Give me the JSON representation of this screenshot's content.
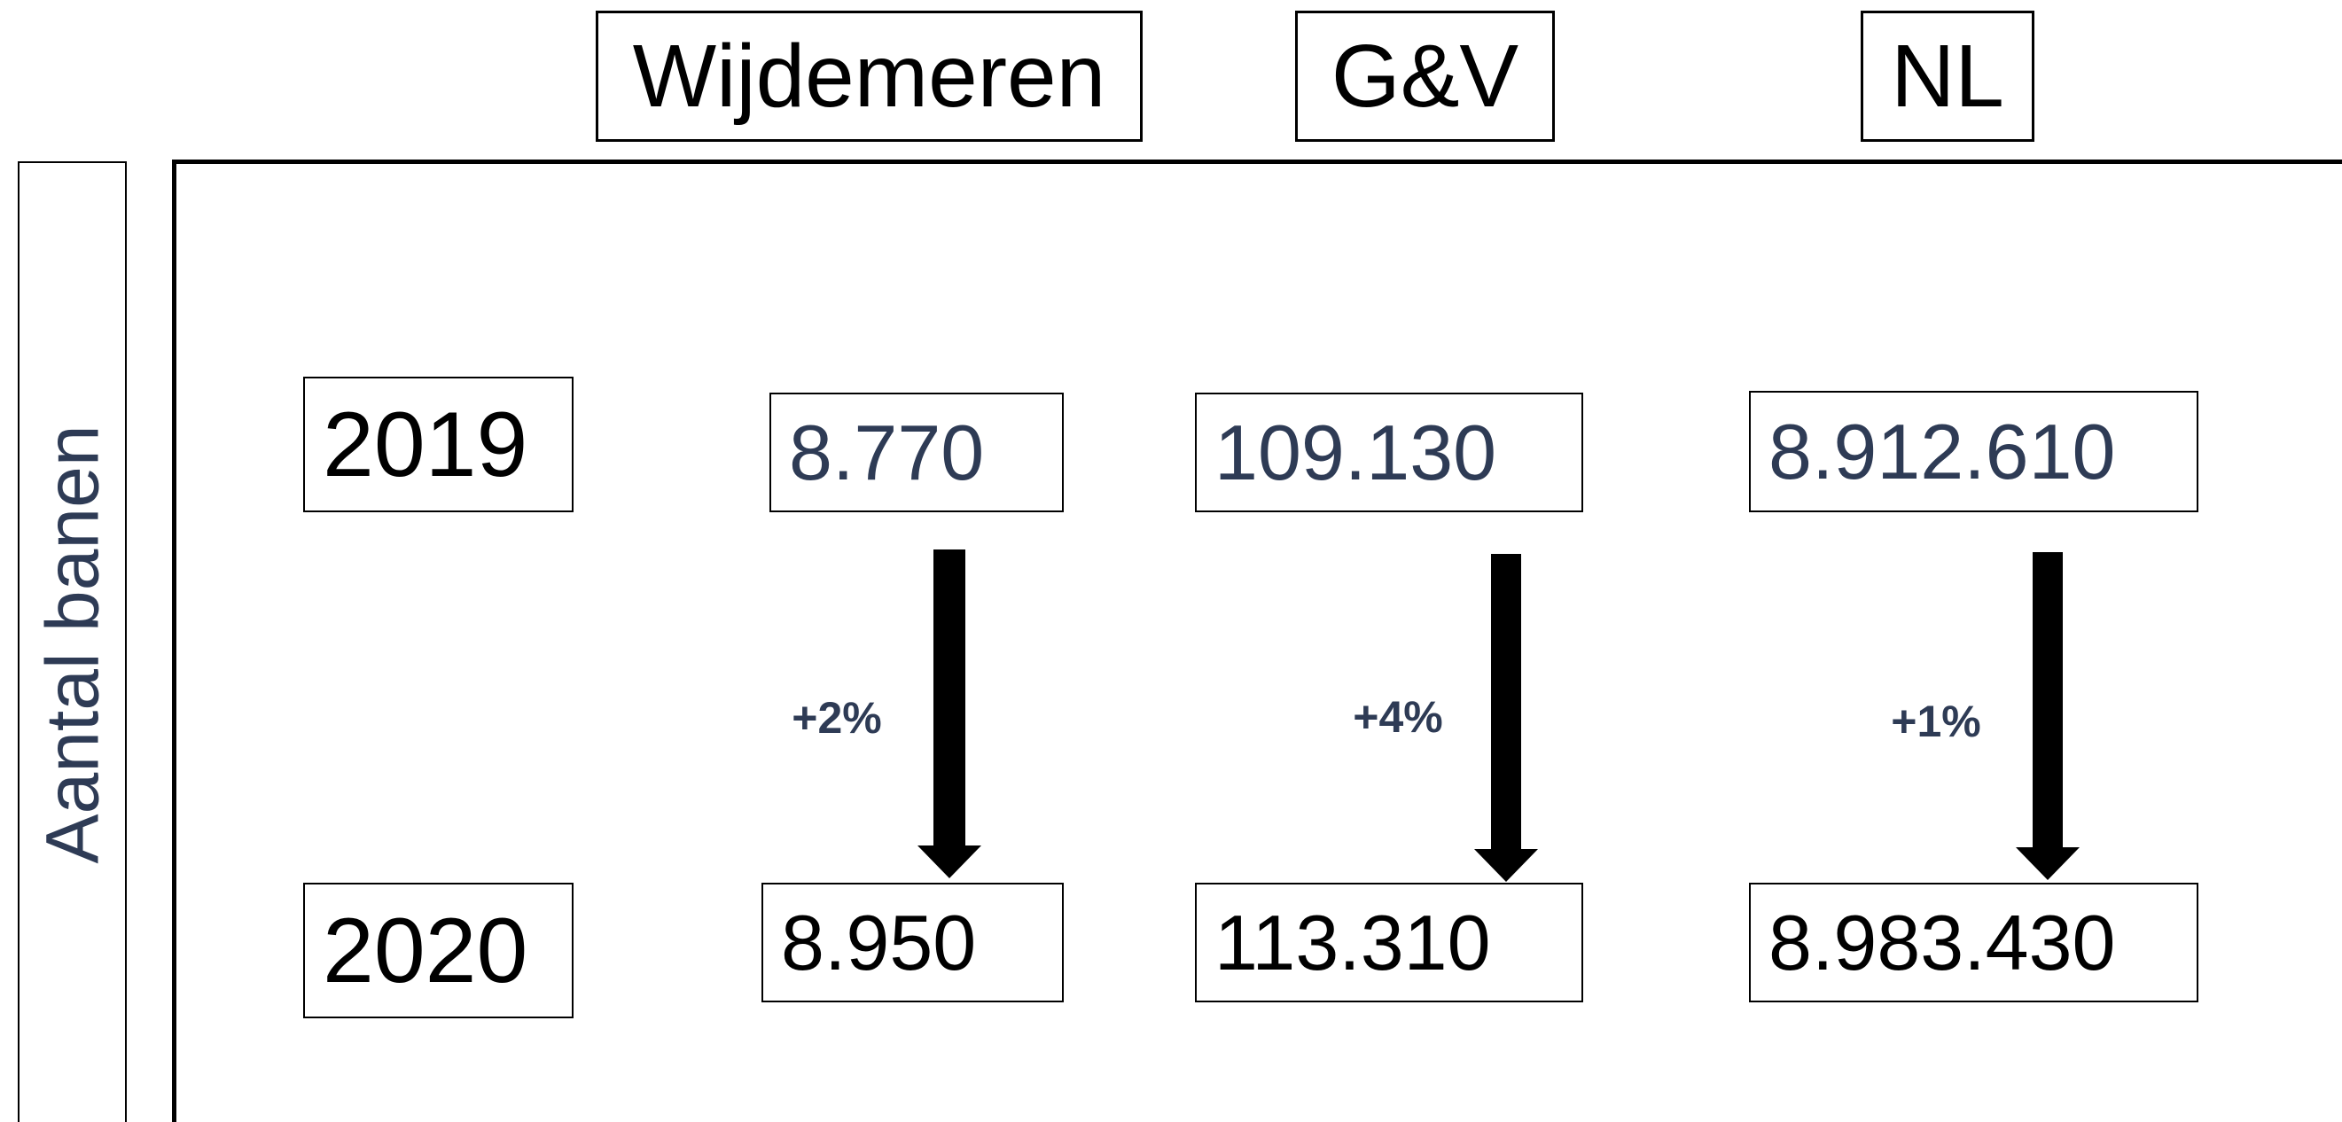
{
  "side_label": "Aantal banen",
  "years": [
    "2019",
    "2020"
  ],
  "columns": [
    {
      "name": "Wijdemeren",
      "values": [
        "8.770",
        "8.950"
      ],
      "change": "+2%"
    },
    {
      "name": "G&V",
      "values": [
        "109.130",
        "113.310"
      ],
      "change": "+4%"
    },
    {
      "name": "NL",
      "values": [
        "8.912.610",
        "8.983.430"
      ],
      "change": "+1%"
    }
  ]
}
